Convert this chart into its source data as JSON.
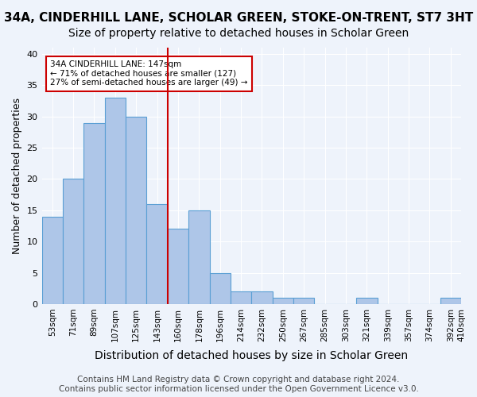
{
  "title": "34A, CINDERHILL LANE, SCHOLAR GREEN, STOKE-ON-TRENT, ST7 3HT",
  "subtitle": "Size of property relative to detached houses in Scholar Green",
  "xlabel": "Distribution of detached houses by size in Scholar Green",
  "ylabel": "Number of detached properties",
  "bar_values": [
    14,
    20,
    29,
    33,
    30,
    16,
    12,
    15,
    5,
    2,
    2,
    1,
    1,
    0,
    0,
    1,
    0,
    0,
    0,
    1
  ],
  "bin_labels": [
    "53sqm",
    "71sqm",
    "89sqm",
    "107sqm",
    "125sqm",
    "143sqm",
    "160sqm",
    "178sqm",
    "196sqm",
    "214sqm",
    "232sqm",
    "250sqm",
    "267sqm",
    "285sqm",
    "303sqm",
    "321sqm",
    "339sqm",
    "357sqm",
    "374sqm",
    "392sqm"
  ],
  "extra_tick_label": "410sqm",
  "bar_color": "#aec6e8",
  "bar_edge_color": "#5a9fd4",
  "vline_x": 5.5,
  "vline_color": "#cc0000",
  "annotation_text": "34A CINDERHILL LANE: 147sqm\n← 71% of detached houses are smaller (127)\n27% of semi-detached houses are larger (49) →",
  "annotation_box_color": "#ffffff",
  "annotation_box_edge": "#cc0000",
  "ylim": [
    0,
    41
  ],
  "yticks": [
    0,
    5,
    10,
    15,
    20,
    25,
    30,
    35,
    40
  ],
  "footer": "Contains HM Land Registry data © Crown copyright and database right 2024.\nContains public sector information licensed under the Open Government Licence v3.0.",
  "bg_color": "#eef3fb",
  "title_fontsize": 11,
  "subtitle_fontsize": 10,
  "xlabel_fontsize": 10,
  "ylabel_fontsize": 9,
  "tick_fontsize": 7.5,
  "footer_fontsize": 7.5
}
